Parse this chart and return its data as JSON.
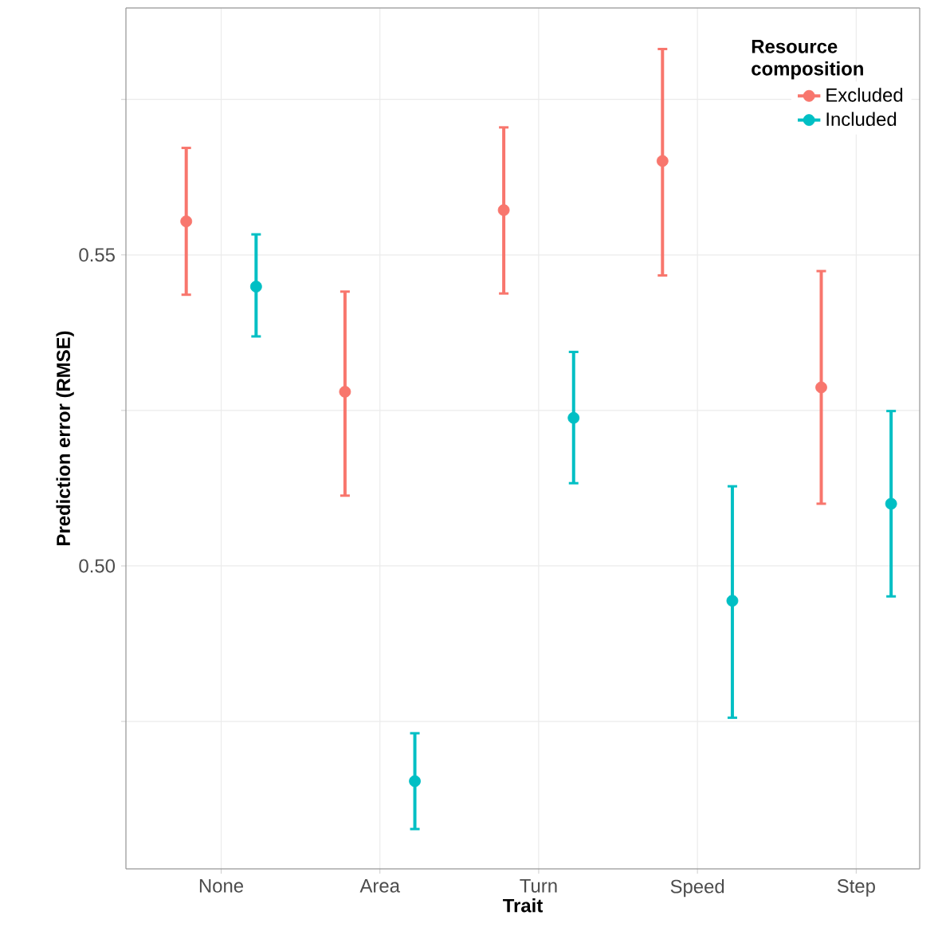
{
  "chart_data": {
    "type": "scatter",
    "xlabel": "Trait",
    "ylabel": "Prediction error (RMSE)",
    "legend_title": "Resource composition",
    "categories": [
      "None",
      "Area",
      "Turn",
      "Speed",
      "Step"
    ],
    "series": [
      {
        "name": "Excluded",
        "color": "#f8766d",
        "values": [
          0.5554,
          0.528,
          0.5572,
          0.5651,
          0.5287
        ],
        "errors": [
          [
            0.5436,
            0.5672
          ],
          [
            0.5113,
            0.5441
          ],
          [
            0.5438,
            0.5705
          ],
          [
            0.5467,
            0.5831
          ],
          [
            0.51,
            0.5474
          ]
        ]
      },
      {
        "name": "Included",
        "color": "#00bfc4",
        "values": [
          0.5449,
          0.4654,
          0.5238,
          0.4944,
          0.51
        ],
        "errors": [
          [
            0.5369,
            0.5533
          ],
          [
            0.4577,
            0.4731
          ],
          [
            0.5133,
            0.5344
          ],
          [
            0.4756,
            0.5128
          ],
          [
            0.4951,
            0.5249
          ]
        ]
      }
    ],
    "ylim": [
      0.4513,
      0.5897
    ],
    "yticks": [
      {
        "value": 0.475,
        "label": null
      },
      {
        "value": 0.5,
        "label": "0.50"
      },
      {
        "value": 0.525,
        "label": null
      },
      {
        "value": 0.55,
        "label": "0.55"
      },
      {
        "value": 0.575,
        "label": null
      }
    ],
    "grid": true,
    "legend": "top right",
    "marker": "circle"
  }
}
